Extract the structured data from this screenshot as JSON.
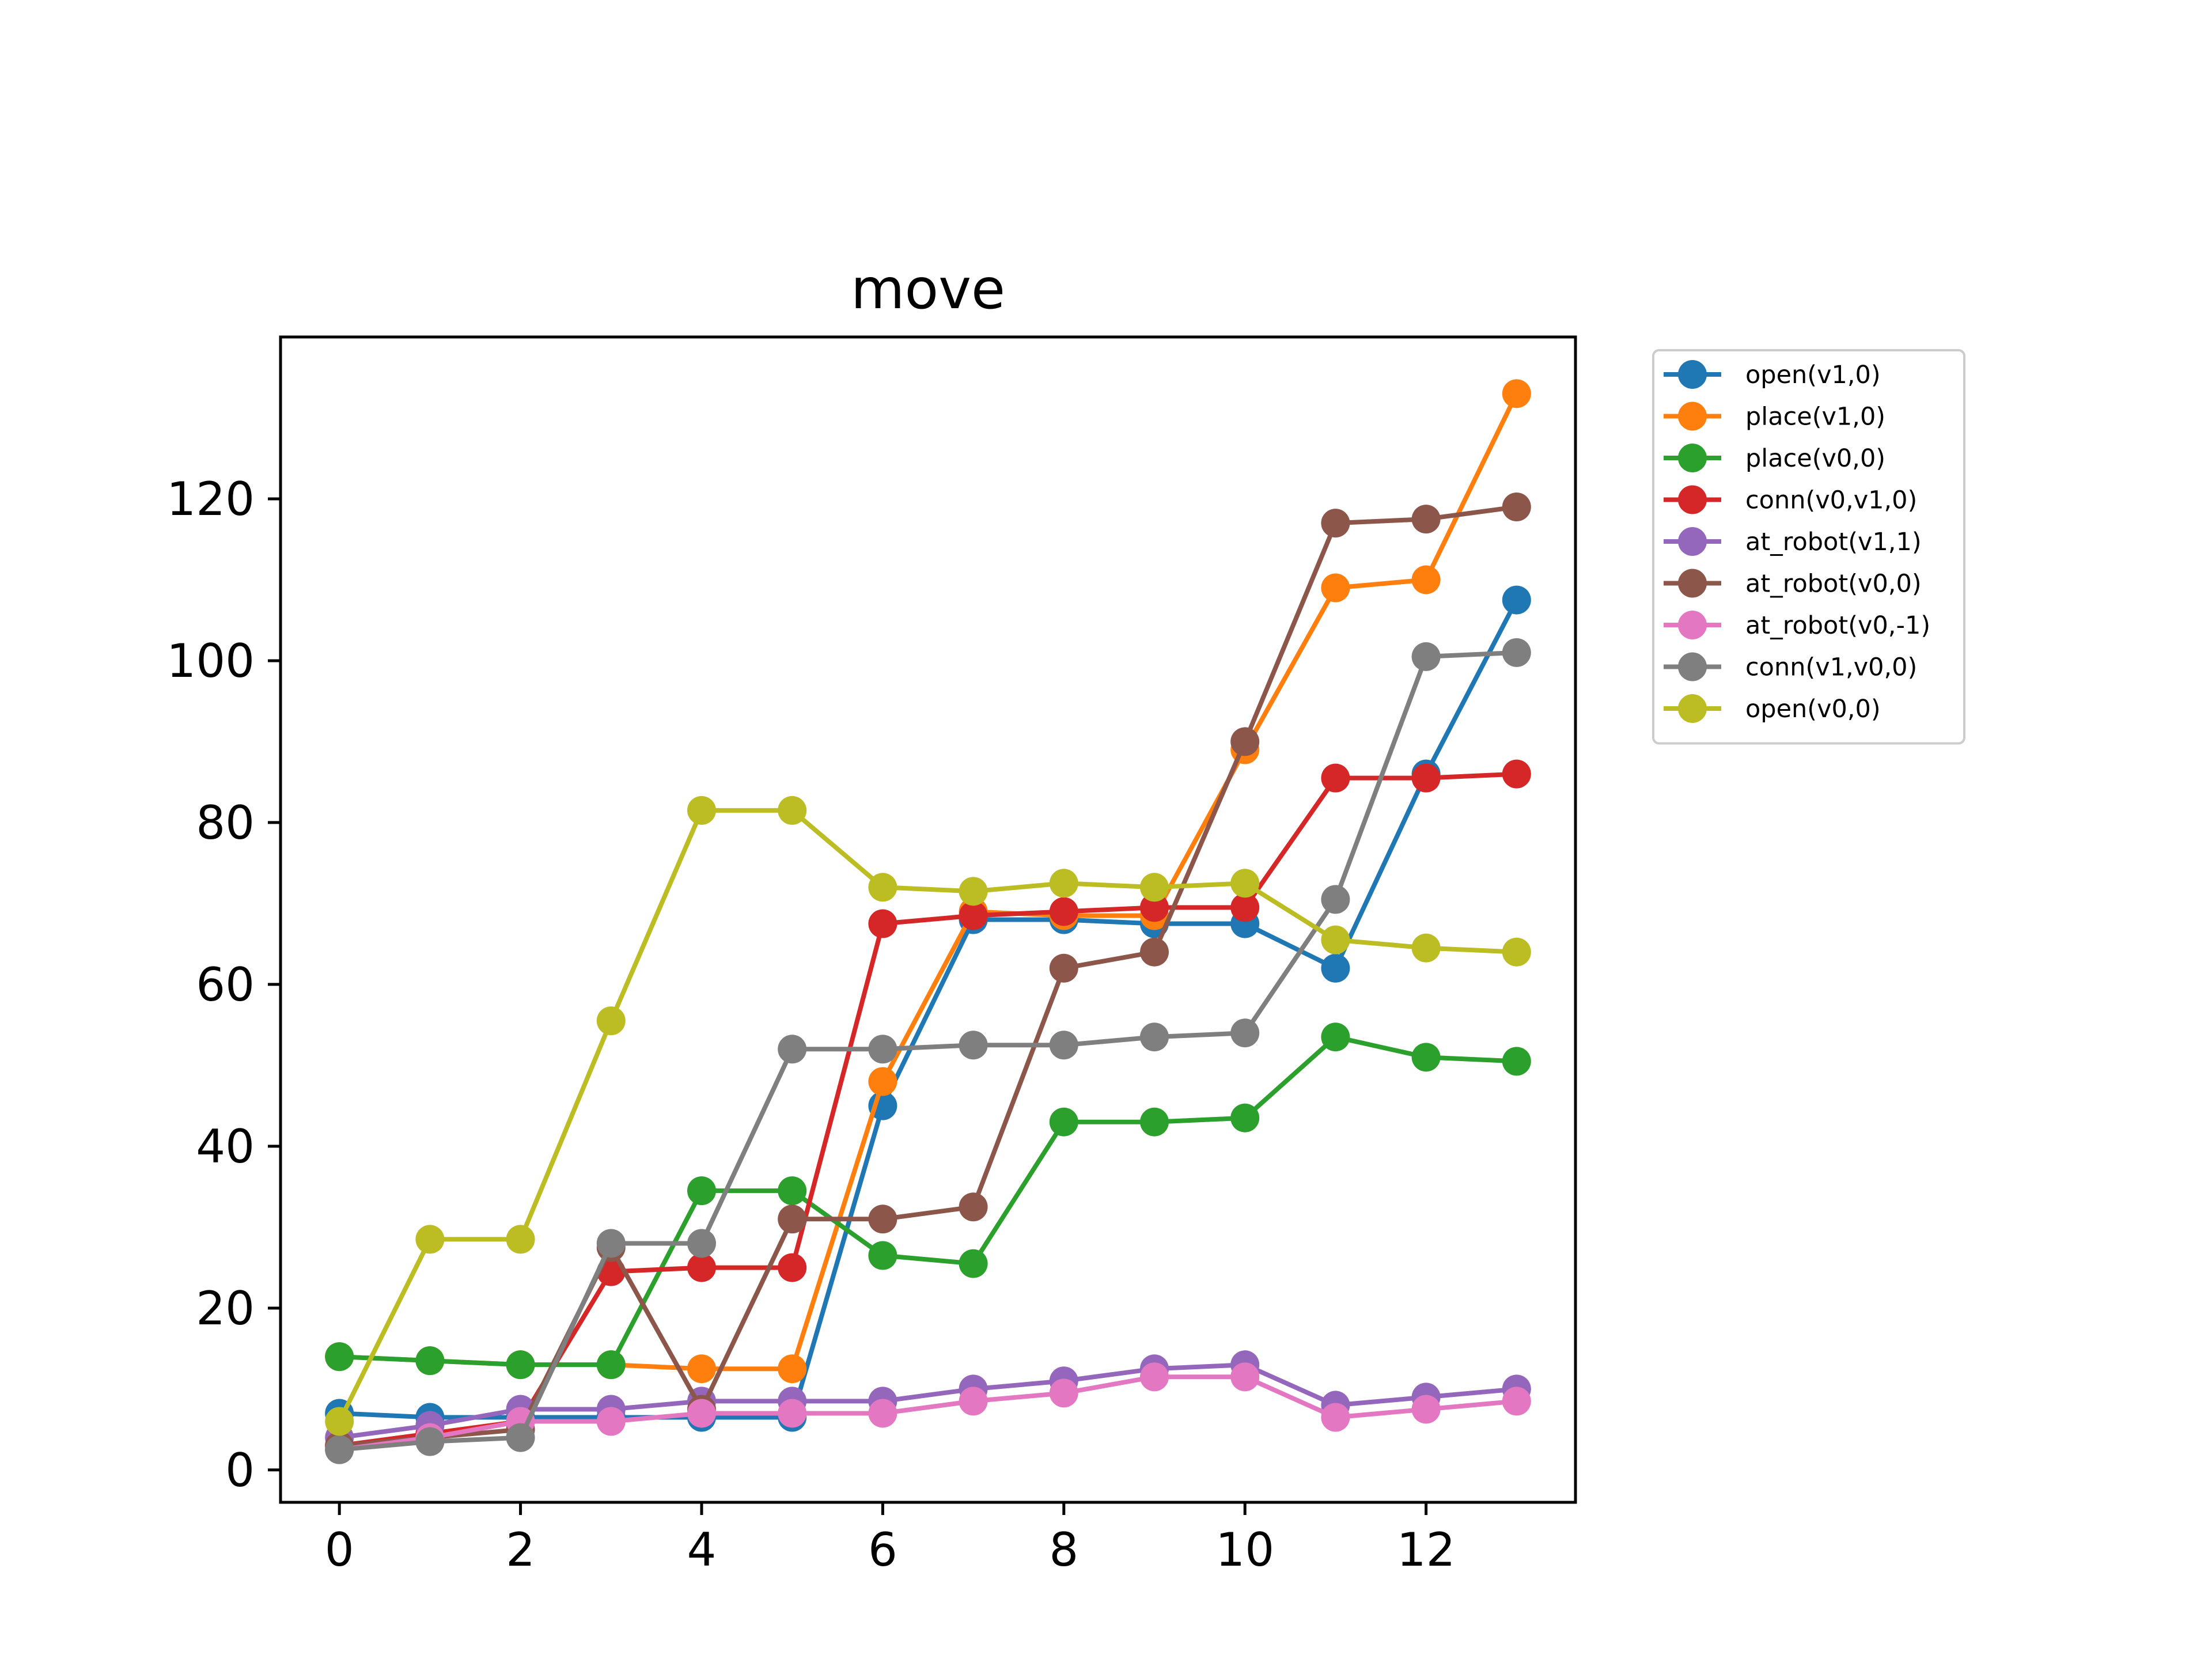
{
  "chart_data": {
    "type": "line",
    "title": "move",
    "xlabel": "",
    "ylabel": "",
    "xlim": [
      -0.65,
      13.65
    ],
    "ylim": [
      -4,
      140
    ],
    "xticks": [
      0,
      2,
      4,
      6,
      8,
      10,
      12
    ],
    "yticks": [
      0,
      20,
      40,
      60,
      80,
      100,
      120
    ],
    "grid": false,
    "legend_position": "outside-top-right",
    "x": [
      0,
      1,
      2,
      3,
      4,
      5,
      6,
      7,
      8,
      9,
      10,
      11,
      12,
      13
    ],
    "series": [
      {
        "name": "open(v1,0)",
        "color": "#1f77b4",
        "values": [
          7,
          6.5,
          6.5,
          6.5,
          6.5,
          6.5,
          45,
          68,
          68,
          67.5,
          67.5,
          62,
          86,
          107.5
        ]
      },
      {
        "name": "place(v1,0)",
        "color": "#ff7f0e",
        "values": [
          14,
          13.5,
          13,
          13,
          12.5,
          12.5,
          48,
          69,
          68.5,
          68.5,
          89,
          109,
          110,
          133
        ]
      },
      {
        "name": "place(v0,0)",
        "color": "#2ca02c",
        "values": [
          14,
          13.5,
          13,
          13,
          34.5,
          34.5,
          26.5,
          25.5,
          43,
          43,
          43.5,
          53.5,
          51,
          50.5
        ]
      },
      {
        "name": "conn(v0,v1,0)",
        "color": "#d62728",
        "values": [
          3,
          4.5,
          6,
          24.5,
          25,
          25,
          67.5,
          68.5,
          69,
          69.5,
          69.5,
          85.5,
          85.5,
          86
        ]
      },
      {
        "name": "at_robot(v1,1)",
        "color": "#9467bd",
        "values": [
          4,
          5.5,
          7.5,
          7.5,
          8.5,
          8.5,
          8.5,
          10,
          11,
          12.5,
          13,
          8,
          9,
          10
        ]
      },
      {
        "name": "at_robot(v0,0)",
        "color": "#8c564b",
        "values": [
          3,
          4,
          5,
          27.5,
          7.5,
          31,
          31,
          32.5,
          62,
          64,
          90,
          117,
          117.5,
          119
        ]
      },
      {
        "name": "at_robot(v0,-1)",
        "color": "#e377c2",
        "values": [
          2.5,
          4,
          6,
          6,
          7,
          7,
          7,
          8.5,
          9.5,
          11.5,
          11.5,
          6.5,
          7.5,
          8.5
        ]
      },
      {
        "name": "conn(v1,v0,0)",
        "color": "#7f7f7f",
        "values": [
          2.5,
          3.5,
          4,
          28,
          28,
          52,
          52,
          52.5,
          52.5,
          53.5,
          54,
          70.5,
          100.5,
          101
        ]
      },
      {
        "name": "open(v0,0)",
        "color": "#bcbd22",
        "values": [
          6,
          28.5,
          28.5,
          55.5,
          81.5,
          81.5,
          72,
          71.5,
          72.5,
          72,
          72.5,
          65.5,
          64.5,
          64
        ]
      }
    ]
  }
}
